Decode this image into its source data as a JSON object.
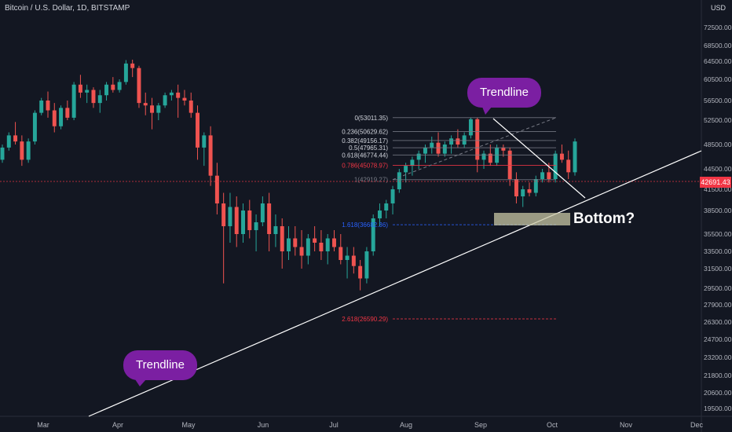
{
  "header": {
    "title": "Bitcoin / U.S. Dollar, 1D, BITSTAMP",
    "currency": "USD"
  },
  "current_price": "42691.43",
  "annotations": {
    "trendline_top": "Trendline",
    "trendline_bottom": "Trendline",
    "bottom": "Bottom?"
  },
  "colors": {
    "background": "#131722",
    "up": "#26a69a",
    "down": "#ef5350",
    "bubble": "#7b1fa2",
    "fib_line": "#787b86",
    "fib_red": "#f23645",
    "fib_blue": "#2962ff",
    "zone": "#c8c7a4"
  },
  "chart_data": {
    "type": "candlestick",
    "x_ticks": [
      "Mar",
      "Apr",
      "May",
      "Jun",
      "Jul",
      "Aug",
      "Sep",
      "Oct",
      "Nov",
      "Dec"
    ],
    "y_ticks": [
      "72500.00",
      "68500.00",
      "64500.00",
      "60500.00",
      "56500.00",
      "52500.00",
      "48500.00",
      "44500.00",
      "41500.00",
      "38500.00",
      "35500.00",
      "33500.00",
      "31500.00",
      "29500.00",
      "27900.00",
      "26300.00",
      "24700.00",
      "23200.00",
      "21800.00",
      "20600.00",
      "19500.00"
    ],
    "fib_levels": [
      {
        "label": "0(53011.35)",
        "value": 53011.35,
        "color": "#d1d4dc"
      },
      {
        "label": "0.236(50629.62)",
        "value": 50629.62,
        "color": "#d1d4dc"
      },
      {
        "label": "0.382(49156.17)",
        "value": 49156.17,
        "color": "#d1d4dc"
      },
      {
        "label": "0.5(47965.31)",
        "value": 47965.31,
        "color": "#d1d4dc"
      },
      {
        "label": "0.618(46774.44)",
        "value": 46774.44,
        "color": "#d1d4dc"
      },
      {
        "label": "0.786(45078.97)",
        "value": 45078.97,
        "color": "#f23645"
      },
      {
        "label": "1(42919.27)",
        "value": 42919.27,
        "color": "#787b86"
      },
      {
        "label": "1.618(36682.36)",
        "value": 36682.36,
        "color": "#2962ff"
      },
      {
        "label": "2.618(26590.29)",
        "value": 26590.29,
        "color": "#f23645"
      }
    ],
    "series": [
      {
        "values": [
          [
            46000,
            48500,
            45500,
            48000
          ],
          [
            48000,
            50500,
            47500,
            50000
          ],
          [
            50000,
            52200,
            48500,
            49000
          ],
          [
            49000,
            50000,
            45000,
            46000
          ],
          [
            46000,
            49500,
            45500,
            49000
          ],
          [
            49000,
            54500,
            48500,
            54000
          ],
          [
            54000,
            57000,
            53500,
            56500
          ],
          [
            56500,
            58200,
            53000,
            54500
          ],
          [
            54500,
            56000,
            50500,
            51500
          ],
          [
            51500,
            55500,
            51000,
            55000
          ],
          [
            55000,
            56500,
            52500,
            53000
          ],
          [
            53000,
            60000,
            52500,
            59500
          ],
          [
            59500,
            61500,
            57000,
            58000
          ],
          [
            58000,
            59500,
            56000,
            58500
          ],
          [
            58500,
            59000,
            55000,
            56000
          ],
          [
            56000,
            58500,
            54000,
            57500
          ],
          [
            57500,
            60000,
            56500,
            59500
          ],
          [
            59500,
            61000,
            58000,
            58500
          ],
          [
            58500,
            60500,
            58000,
            60000
          ],
          [
            60000,
            64800,
            59500,
            64000
          ],
          [
            64000,
            64900,
            61000,
            63000
          ],
          [
            63000,
            63500,
            55000,
            56000
          ],
          [
            56000,
            58000,
            53500,
            55500
          ],
          [
            55500,
            57000,
            51000,
            54000
          ],
          [
            54000,
            56000,
            52500,
            55500
          ],
          [
            55500,
            58000,
            55000,
            57500
          ],
          [
            57500,
            58500,
            56500,
            58000
          ],
          [
            58000,
            59500,
            53000,
            57000
          ],
          [
            57000,
            58500,
            55500,
            56500
          ],
          [
            56500,
            58000,
            53000,
            54000
          ],
          [
            54000,
            55500,
            46000,
            48000
          ],
          [
            48000,
            50500,
            45000,
            50000
          ],
          [
            50000,
            51500,
            42000,
            43500
          ],
          [
            43500,
            45500,
            38000,
            39500
          ],
          [
            39500,
            41000,
            30000,
            36500
          ],
          [
            36500,
            41000,
            34500,
            39000
          ],
          [
            39000,
            40500,
            34000,
            35500
          ],
          [
            35500,
            39500,
            34500,
            38500
          ],
          [
            38500,
            40000,
            35000,
            36000
          ],
          [
            36000,
            38000,
            33500,
            37000
          ],
          [
            37000,
            40500,
            36500,
            39500
          ],
          [
            39500,
            41000,
            33500,
            35500
          ],
          [
            35500,
            38000,
            34000,
            36500
          ],
          [
            36500,
            37500,
            31500,
            33500
          ],
          [
            33500,
            36500,
            32500,
            35000
          ],
          [
            35000,
            36500,
            33000,
            34000
          ],
          [
            34000,
            36000,
            31500,
            33000
          ],
          [
            33000,
            35500,
            32000,
            35000
          ],
          [
            35000,
            36500,
            33500,
            34500
          ],
          [
            34500,
            36000,
            32500,
            33500
          ],
          [
            33500,
            35500,
            32000,
            35000
          ],
          [
            35000,
            36000,
            33500,
            34000
          ],
          [
            34000,
            35500,
            32000,
            32500
          ],
          [
            32500,
            34000,
            30500,
            33000
          ],
          [
            33000,
            34000,
            31000,
            31800
          ],
          [
            31800,
            32500,
            29300,
            30500
          ],
          [
            30500,
            34000,
            30000,
            33500
          ],
          [
            33500,
            38000,
            33000,
            37500
          ],
          [
            37500,
            39500,
            36500,
            38500
          ],
          [
            38500,
            40000,
            37500,
            39500
          ],
          [
            39500,
            42000,
            38000,
            41500
          ],
          [
            41500,
            44500,
            41000,
            44000
          ],
          [
            44000,
            45500,
            42500,
            45000
          ],
          [
            45000,
            46500,
            43500,
            46000
          ],
          [
            46000,
            47500,
            44500,
            47000
          ],
          [
            47000,
            48500,
            45500,
            48000
          ],
          [
            48000,
            49800,
            47000,
            48800
          ],
          [
            48800,
            50500,
            46500,
            47000
          ],
          [
            47000,
            49000,
            46500,
            48500
          ],
          [
            48500,
            50000,
            47000,
            49500
          ],
          [
            49500,
            51000,
            48000,
            48500
          ],
          [
            48500,
            50500,
            48000,
            50000
          ],
          [
            50000,
            53000,
            49500,
            52700
          ],
          [
            52700,
            53011,
            44000,
            46000
          ],
          [
            46000,
            47500,
            44500,
            47000
          ],
          [
            47000,
            48500,
            45000,
            45500
          ],
          [
            45500,
            48500,
            45000,
            48000
          ],
          [
            48000,
            48500,
            46500,
            47500
          ],
          [
            47500,
            48000,
            42000,
            43000
          ],
          [
            43000,
            44000,
            39500,
            40500
          ],
          [
            40500,
            42000,
            39000,
            41500
          ],
          [
            41500,
            42500,
            40500,
            41000
          ],
          [
            41000,
            43500,
            40500,
            43000
          ],
          [
            43000,
            44500,
            42500,
            44000
          ],
          [
            44000,
            45500,
            42500,
            43000
          ],
          [
            43000,
            47500,
            42500,
            47000
          ],
          [
            47000,
            48500,
            45500,
            46000
          ],
          [
            46000,
            47500,
            43000,
            44000
          ],
          [
            44000,
            49500,
            43500,
            49000
          ]
        ]
      }
    ]
  }
}
